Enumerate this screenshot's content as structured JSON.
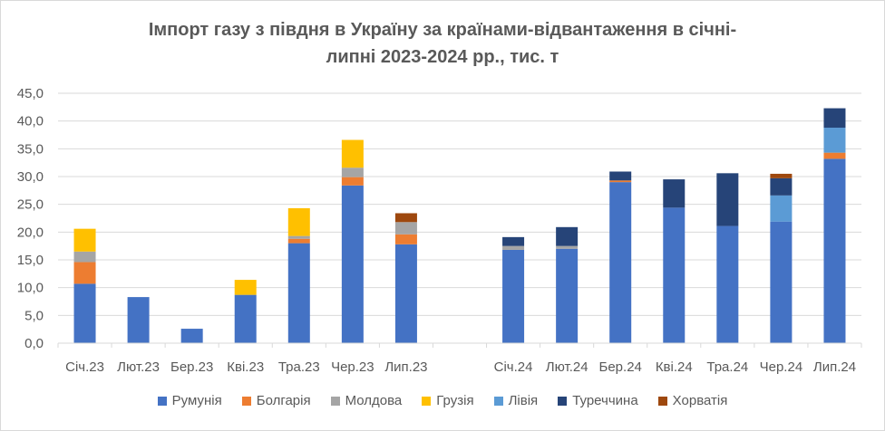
{
  "chart_data": {
    "type": "bar",
    "stacked": true,
    "title_line1": "Імпорт газу з півдня в Україну за країнами-відвантаження в січні-",
    "title_line2": "липні 2023-2024 рр., тис. т",
    "categories": [
      "Січ.23",
      "Лют.23",
      "Бер.23",
      "Кві.23",
      "Тра.23",
      "Чер.23",
      "Лип.23",
      "",
      "Січ.24",
      "Лют.24",
      "Бер.24",
      "Кві.24",
      "Тра.24",
      "Чер.24",
      "Лип.24"
    ],
    "series": [
      {
        "name": "Румунія",
        "color": "#4472c4",
        "values": [
          10.7,
          8.3,
          2.6,
          8.7,
          18.0,
          28.4,
          17.8,
          0,
          16.8,
          17.0,
          29.0,
          24.4,
          21.1,
          21.9,
          33.2
        ]
      },
      {
        "name": "Болгарія",
        "color": "#ed7d31",
        "values": [
          3.9,
          0,
          0,
          0,
          0.8,
          1.5,
          1.8,
          0,
          0,
          0,
          0.3,
          0,
          0,
          0,
          1.1
        ]
      },
      {
        "name": "Молдова",
        "color": "#a5a5a5",
        "values": [
          1.9,
          0,
          0,
          0,
          0.5,
          1.7,
          2.2,
          0,
          0.7,
          0.5,
          0,
          0,
          0,
          0,
          0
        ]
      },
      {
        "name": "Грузія",
        "color": "#ffc000",
        "values": [
          4.1,
          0,
          0,
          2.7,
          5.0,
          5.0,
          0,
          0,
          0,
          0,
          0,
          0,
          0,
          0,
          0
        ]
      },
      {
        "name": "Лівія",
        "color": "#5b9bd5",
        "values": [
          0,
          0,
          0,
          0,
          0,
          0,
          0,
          0,
          0,
          0,
          0,
          0,
          0,
          4.7,
          4.5
        ]
      },
      {
        "name": "Туреччина",
        "color": "#264478",
        "values": [
          0,
          0,
          0,
          0,
          0,
          0,
          0,
          0,
          1.6,
          3.4,
          1.6,
          5.1,
          9.5,
          3.1,
          3.5
        ]
      },
      {
        "name": "Хорватія",
        "color": "#9e480e",
        "values": [
          0,
          0,
          0,
          0,
          0,
          0,
          1.6,
          0,
          0,
          0,
          0,
          0,
          0,
          0.8,
          0
        ]
      }
    ],
    "ylim": [
      0,
      45
    ],
    "yticks": [
      "0,0",
      "5,0",
      "10,0",
      "15,0",
      "20,0",
      "25,0",
      "30,0",
      "35,0",
      "40,0",
      "45,0"
    ],
    "grid": true,
    "legend_position": "bottom"
  }
}
